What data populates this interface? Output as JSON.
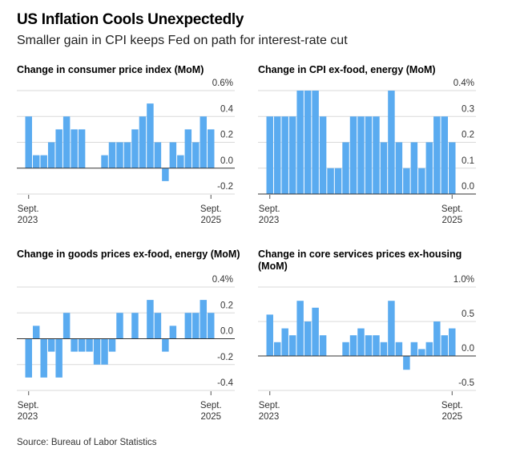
{
  "header": {
    "title": "US Inflation Cools Unexpectedly",
    "subtitle": "Smaller gain in CPI keeps Fed on path for interest-rate cut"
  },
  "source": "Source: Bureau of Labor Statistics",
  "colors": {
    "bar": "#5aabf0",
    "grid": "#d9d9d9",
    "zero": "#333333"
  },
  "chart_data": [
    {
      "type": "bar",
      "title": "Change in consumer price index (MoM)",
      "xlabel": "",
      "ylabel": "",
      "x_start_label": [
        "Sept.",
        "2023"
      ],
      "x_end_label": [
        "Sept.",
        "2025"
      ],
      "ylim": [
        -0.2,
        0.6
      ],
      "yticks": [
        0.6,
        0.4,
        0.2,
        0.0,
        -0.2
      ],
      "ytick_labels": [
        "0.6%",
        "0.4",
        "0.2",
        "0.0",
        "-0.2"
      ],
      "grid": true,
      "values": [
        0.4,
        0.1,
        0.1,
        0.2,
        0.3,
        0.4,
        0.3,
        0.3,
        0.0,
        0.0,
        0.1,
        0.2,
        0.2,
        0.2,
        0.3,
        0.4,
        0.5,
        0.2,
        -0.1,
        0.2,
        0.1,
        0.3,
        0.2,
        0.4,
        0.3
      ]
    },
    {
      "type": "bar",
      "title": "Change in CPI ex-food, energy (MoM)",
      "xlabel": "",
      "ylabel": "",
      "x_start_label": [
        "Sept.",
        "2023"
      ],
      "x_end_label": [
        "Sept.",
        "2025"
      ],
      "ylim": [
        0.0,
        0.4
      ],
      "yticks": [
        0.4,
        0.3,
        0.2,
        0.1,
        0.0
      ],
      "ytick_labels": [
        "0.4%",
        "0.3",
        "0.2",
        "0.1",
        "0.0"
      ],
      "grid": true,
      "values": [
        0.3,
        0.3,
        0.3,
        0.3,
        0.4,
        0.4,
        0.4,
        0.3,
        0.1,
        0.1,
        0.2,
        0.3,
        0.3,
        0.3,
        0.3,
        0.2,
        0.4,
        0.2,
        0.1,
        0.2,
        0.1,
        0.2,
        0.3,
        0.3,
        0.2
      ]
    },
    {
      "type": "bar",
      "title": "Change in goods prices ex-food, energy (MoM)",
      "xlabel": "",
      "ylabel": "",
      "x_start_label": [
        "Sept.",
        "2023"
      ],
      "x_end_label": [
        "Sept.",
        "2025"
      ],
      "ylim": [
        -0.4,
        0.4
      ],
      "yticks": [
        0.4,
        0.2,
        0.0,
        -0.2,
        -0.4
      ],
      "ytick_labels": [
        "0.4%",
        "0.2",
        "0.0",
        "-0.2",
        "-0.4"
      ],
      "grid": true,
      "values": [
        -0.3,
        0.1,
        -0.3,
        -0.1,
        -0.3,
        0.2,
        -0.1,
        -0.1,
        -0.1,
        -0.2,
        -0.2,
        -0.1,
        0.2,
        0.0,
        0.2,
        0.0,
        0.3,
        0.2,
        -0.1,
        0.1,
        0.0,
        0.2,
        0.2,
        0.3,
        0.2
      ]
    },
    {
      "type": "bar",
      "title": "Change in core services prices ex-housing (MoM)",
      "xlabel": "",
      "ylabel": "",
      "x_start_label": [
        "Sept.",
        "2023"
      ],
      "x_end_label": [
        "Sept.",
        "2025"
      ],
      "ylim": [
        -0.5,
        1.0
      ],
      "yticks": [
        1.0,
        0.5,
        0.0,
        -0.5
      ],
      "ytick_labels": [
        "1.0%",
        "0.5",
        "0.0",
        "-0.5"
      ],
      "grid": true,
      "values": [
        0.6,
        0.2,
        0.4,
        0.3,
        0.8,
        0.5,
        0.7,
        0.3,
        0.0,
        0.0,
        0.2,
        0.3,
        0.4,
        0.3,
        0.3,
        0.2,
        0.8,
        0.2,
        -0.2,
        0.2,
        0.1,
        0.2,
        0.5,
        0.3,
        0.4
      ]
    }
  ]
}
